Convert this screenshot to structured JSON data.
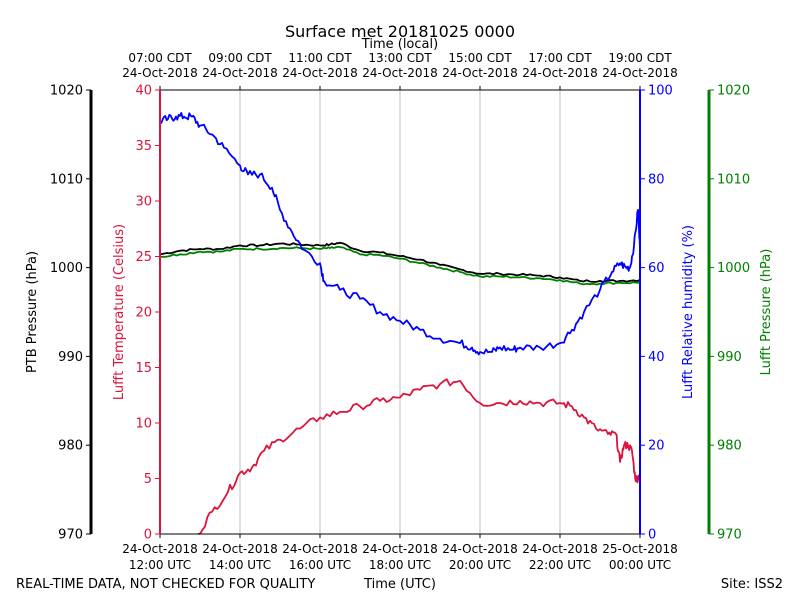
{
  "chart_data": {
    "type": "line",
    "title": "Surface met 20181025 0000",
    "top_axis_label": "Time (local)",
    "xlabel": "Time (UTC)",
    "footer_left": "REAL-TIME DATA, NOT CHECKED FOR QUALITY",
    "footer_right": "Site: ISS2",
    "x_range_hours_utc": [
      12,
      24
    ],
    "x_ticks": [
      {
        "hour": 12,
        "bottom": [
          "24-Oct-2018",
          "12:00 UTC"
        ],
        "top": [
          "07:00 CDT",
          "24-Oct-2018"
        ]
      },
      {
        "hour": 14,
        "bottom": [
          "24-Oct-2018",
          "14:00 UTC"
        ],
        "top": [
          "09:00 CDT",
          "24-Oct-2018"
        ]
      },
      {
        "hour": 16,
        "bottom": [
          "24-Oct-2018",
          "16:00 UTC"
        ],
        "top": [
          "11:00 CDT",
          "24-Oct-2018"
        ]
      },
      {
        "hour": 18,
        "bottom": [
          "24-Oct-2018",
          "18:00 UTC"
        ],
        "top": [
          "13:00 CDT",
          "24-Oct-2018"
        ]
      },
      {
        "hour": 20,
        "bottom": [
          "24-Oct-2018",
          "20:00 UTC"
        ],
        "top": [
          "15:00 CDT",
          "24-Oct-2018"
        ]
      },
      {
        "hour": 22,
        "bottom": [
          "24-Oct-2018",
          "22:00 UTC"
        ],
        "top": [
          "17:00 CDT",
          "24-Oct-2018"
        ]
      },
      {
        "hour": 24,
        "bottom": [
          "25-Oct-2018",
          "00:00 UTC"
        ],
        "top": [
          "19:00 CDT",
          "24-Oct-2018"
        ]
      }
    ],
    "axes": {
      "ptb": {
        "label": "PTB Pressure (hPa)",
        "range": [
          970,
          1020
        ],
        "ticks": [
          "970",
          "980",
          "990",
          "1000",
          "1010",
          "1020"
        ],
        "color": "#000000"
      },
      "temp": {
        "label": "Lufft Temperature (Celsius)",
        "range": [
          0,
          40
        ],
        "ticks": [
          "0",
          "5",
          "10",
          "15",
          "20",
          "25",
          "30",
          "35",
          "40"
        ],
        "color": "#dc143c"
      },
      "rh": {
        "label": "Lufft Relative humidity (%)",
        "range": [
          0,
          100
        ],
        "ticks": [
          "0",
          "20",
          "40",
          "60",
          "80",
          "100"
        ],
        "color": "#0000ff"
      },
      "lp": {
        "label": "Lufft Pressure (hPa)",
        "range": [
          970,
          1020
        ],
        "ticks": [
          "970",
          "980",
          "990",
          "1000",
          "1010",
          "1020"
        ],
        "color": "#008000"
      }
    },
    "series": [
      {
        "name": "PTB Pressure",
        "axis": "ptb",
        "color": "#000000",
        "x": [
          12,
          12.5,
          13,
          13.5,
          14,
          14.5,
          15,
          15.5,
          16,
          16.25,
          16.5,
          17,
          17.5,
          18,
          18.5,
          19,
          19.5,
          20,
          20.5,
          21,
          21.5,
          22,
          22.5,
          23,
          23.5,
          24
        ],
        "y": [
          1001.5,
          1001.9,
          1002.1,
          1002.1,
          1002.5,
          1002.5,
          1002.7,
          1002.6,
          1002.5,
          1002.6,
          1002.8,
          1001.9,
          1001.7,
          1001.3,
          1000.9,
          1000.3,
          999.8,
          999.3,
          999.3,
          999.2,
          999.1,
          998.9,
          998.5,
          998.5,
          998.5,
          998.6
        ]
      },
      {
        "name": "Lufft Pressure",
        "axis": "lp",
        "color": "#008000",
        "x": [
          12,
          12.5,
          13,
          13.5,
          14,
          14.5,
          15,
          15.5,
          16,
          16.25,
          16.5,
          17,
          17.5,
          18,
          18.5,
          19,
          19.5,
          20,
          20.5,
          21,
          21.5,
          22,
          22.5,
          23,
          23.5,
          24
        ],
        "y": [
          1001.2,
          1001.5,
          1001.8,
          1001.8,
          1002.1,
          1002.1,
          1002.2,
          1002.2,
          1002.1,
          1002.2,
          1002.3,
          1001.5,
          1001.4,
          1001.0,
          1000.5,
          1000.0,
          999.5,
          999.0,
          999.0,
          998.9,
          998.8,
          998.6,
          998.2,
          998.2,
          998.3,
          998.3
        ]
      },
      {
        "name": "Lufft Relative humidity",
        "axis": "rh",
        "color": "#0000ff",
        "x": [
          12,
          12.2,
          12.4,
          12.6,
          12.8,
          13,
          13.3,
          13.6,
          14,
          14.2,
          14.5,
          14.8,
          15,
          15.3,
          15.6,
          16,
          16.1,
          16.5,
          17,
          17.5,
          18,
          18.5,
          19,
          19.5,
          19.8,
          20,
          20.3,
          20.5,
          20.8,
          21,
          21.5,
          22,
          22.3,
          22.6,
          23,
          23.3,
          23.5,
          23.65,
          23.75,
          23.85,
          23.95,
          24
        ],
        "y": [
          93,
          93.5,
          94,
          94,
          94,
          92,
          90,
          87,
          83,
          81,
          81,
          78,
          73,
          68,
          64,
          61,
          57,
          55,
          53,
          50,
          48,
          46,
          44,
          43,
          42,
          41,
          41,
          42,
          41.5,
          42,
          42,
          43,
          46,
          50,
          55,
          59,
          61,
          60,
          60,
          65,
          73,
          64
        ]
      },
      {
        "name": "Lufft Temperature",
        "axis": "temp",
        "color": "#dc143c",
        "x": [
          12.95,
          13.3,
          13.7,
          14,
          14.3,
          14.6,
          15,
          15.5,
          16,
          16.5,
          17,
          17.5,
          18,
          18.5,
          19,
          19.5,
          20,
          20.5,
          21,
          21.5,
          22,
          22.3,
          22.6,
          22.9,
          23.2,
          23.4,
          23.5,
          23.6,
          23.7,
          23.8,
          23.88,
          23.95,
          24
        ],
        "y": [
          0,
          2,
          3.8,
          5.5,
          6,
          7.5,
          8.5,
          9.5,
          10.5,
          11,
          11.5,
          12,
          12.3,
          13,
          13.5,
          13.8,
          11.8,
          11.8,
          12,
          11.8,
          11.8,
          11.5,
          10.5,
          9.5,
          9,
          9,
          6.5,
          8,
          8,
          7.5,
          5,
          5,
          5.5
        ]
      }
    ]
  }
}
